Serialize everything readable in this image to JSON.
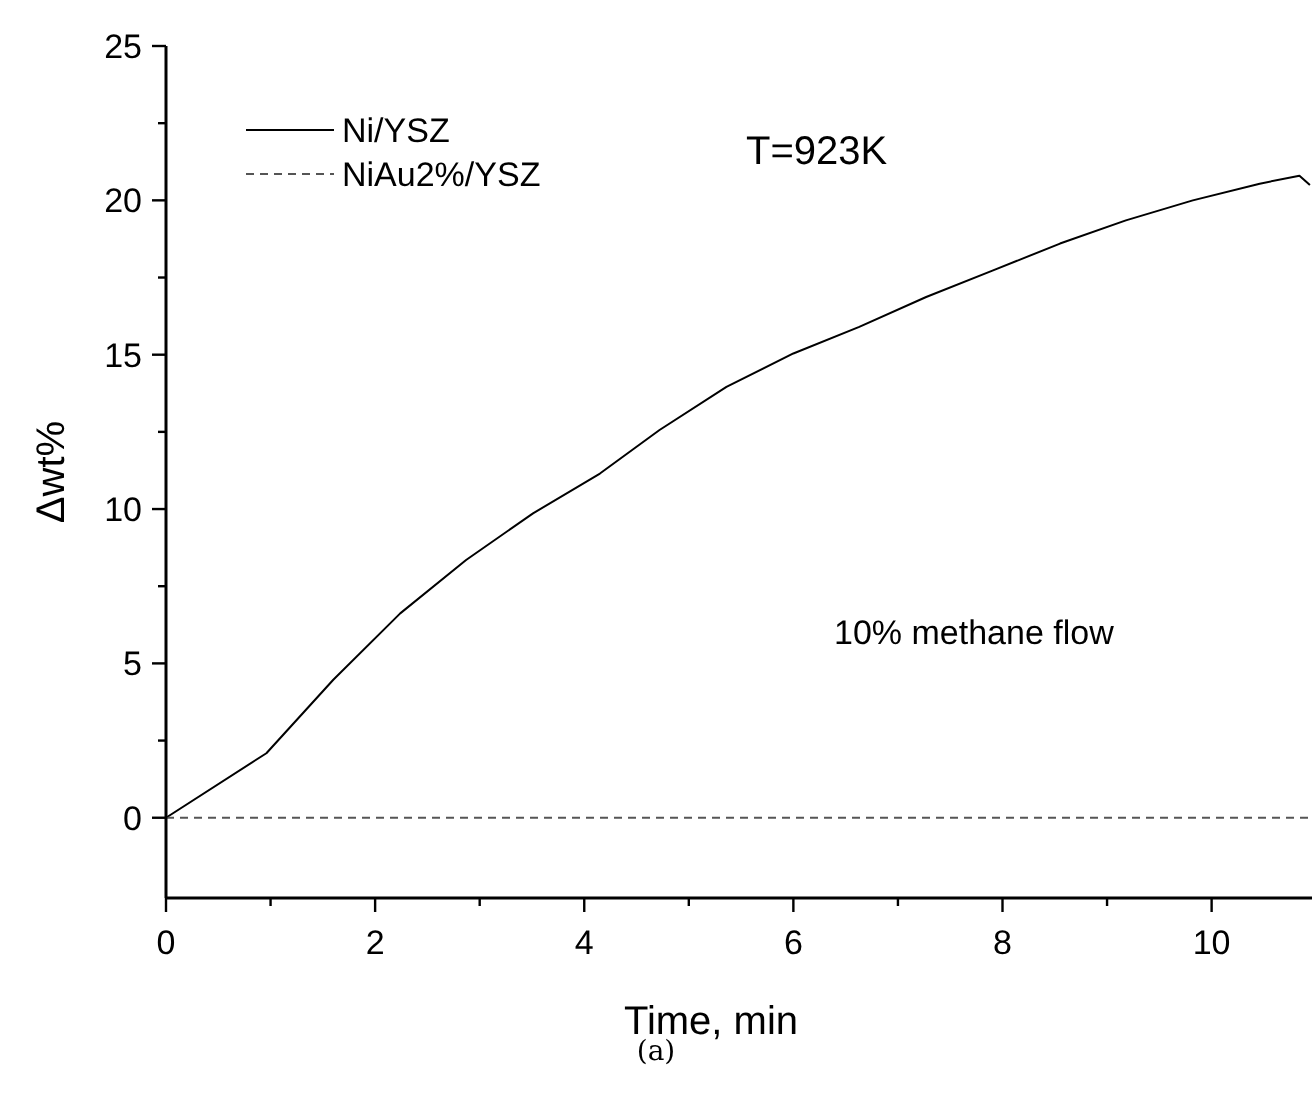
{
  "chart_data": {
    "type": "line",
    "xlabel": "Time, min",
    "ylabel": "Δwt%",
    "annotations": [
      "T=923K",
      "10% methane flow",
      "(a)"
    ],
    "xlim": [
      0,
      10.96
    ],
    "ylim": [
      -2.6,
      25
    ],
    "xticks": [
      0,
      {
        "value": 1,
        "label": null
      },
      2,
      {
        "value": 3,
        "label": null
      },
      4,
      {
        "value": 5,
        "label": null
      },
      6,
      {
        "value": 7,
        "label": null
      },
      8,
      {
        "value": 9,
        "label": null
      },
      10
    ],
    "yticks": [
      0,
      {
        "value": 2.5,
        "label": null
      },
      5,
      {
        "value": 7.5,
        "label": null
      },
      10,
      {
        "value": 12.5,
        "label": null
      },
      15,
      {
        "value": 17.5,
        "label": null
      },
      20,
      {
        "value": 22.5,
        "label": null
      },
      25
    ],
    "legend": "top left",
    "grid": false,
    "marker": "none",
    "series": [
      {
        "name": "Ni/YSZ",
        "color": "#000000",
        "line_style": "solid",
        "x": [
          0,
          0.96,
          1.6,
          2.24,
          2.87,
          3.51,
          4.15,
          4.72,
          5.36,
          6.0,
          6.63,
          7.27,
          7.91,
          8.55,
          9.18,
          9.82,
          10.46,
          10.84,
          10.94
        ],
        "values": [
          0,
          2.09,
          4.47,
          6.62,
          8.35,
          9.86,
          11.15,
          12.56,
          13.96,
          15.04,
          15.9,
          16.87,
          17.73,
          18.6,
          19.35,
          20.0,
          20.54,
          20.8,
          20.5
        ]
      },
      {
        "name": "NiAu2%/YSZ",
        "color": "#555555",
        "line_style": "dashed",
        "x": [
          0,
          10.96
        ],
        "values": [
          0,
          0
        ]
      }
    ]
  }
}
